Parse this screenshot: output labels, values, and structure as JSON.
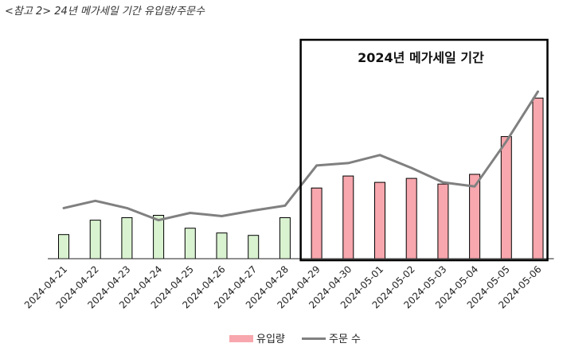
{
  "caption": "<참고 2> 24년 메가세일 기간 유입량/주문수",
  "chart_data": {
    "type": "bar+line",
    "title": "",
    "categories": [
      "2024-04-21",
      "2024-04-22",
      "2024-04-23",
      "2024-04-24",
      "2024-04-25",
      "2024-04-26",
      "2024-04-27",
      "2024-04-28",
      "2024-04-29",
      "2024-04-30",
      "2024-05-01",
      "2024-05-02",
      "2024-05-03",
      "2024-05-04",
      "2024-05-05",
      "2024-05-06"
    ],
    "series": [
      {
        "name": "유입량",
        "kind": "bar",
        "values": [
          15,
          24,
          25.5,
          27,
          19,
          16,
          14.5,
          25.5,
          44,
          51.5,
          47.5,
          50,
          46.5,
          52.5,
          76,
          100
        ],
        "colors": [
          "#d9f2d0",
          "#d9f2d0",
          "#d9f2d0",
          "#d9f2d0",
          "#d9f2d0",
          "#d9f2d0",
          "#d9f2d0",
          "#d9f2d0",
          "#f7a7ad",
          "#f7a7ad",
          "#f7a7ad",
          "#f7a7ad",
          "#f7a7ad",
          "#f7a7ad",
          "#f7a7ad",
          "#f7a7ad"
        ],
        "legend_color": "#f7a7ad"
      },
      {
        "name": "주문 수",
        "kind": "line",
        "values": [
          31.5,
          36,
          31.5,
          24,
          28.5,
          26.5,
          30,
          33,
          58,
          59.5,
          64.5,
          56.5,
          47.5,
          45,
          73,
          104
        ],
        "color": "#808080"
      }
    ],
    "ylim": [
      0,
      110
    ],
    "grid": false,
    "legend": "bottom-center",
    "annotation": {
      "label": "2024년 메가세일 기간",
      "from": "2024-04-29",
      "to": "2024-05-06"
    }
  }
}
